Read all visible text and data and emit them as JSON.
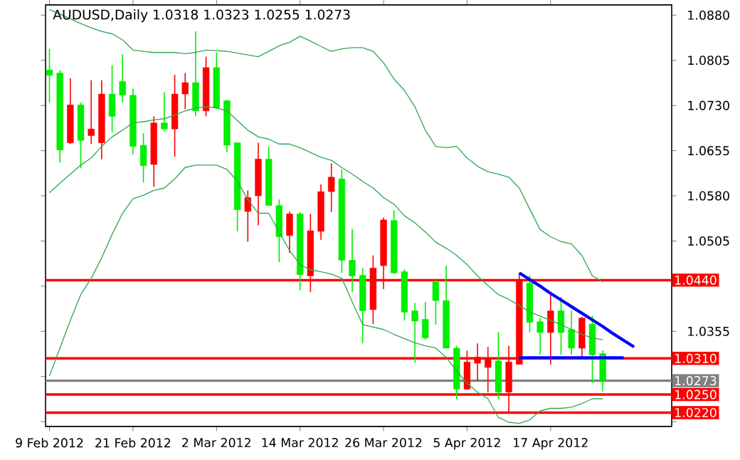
{
  "chart_data": {
    "type": "candlestick",
    "title": "AUDUSD,Daily  1.0318 1.0323 1.0255 1.0273",
    "categories": [
      "9 Feb 2012",
      null,
      null,
      null,
      null,
      null,
      null,
      null,
      "21 Feb 2012",
      null,
      null,
      null,
      null,
      null,
      null,
      null,
      "2 Mar 2012",
      null,
      null,
      null,
      null,
      null,
      null,
      null,
      "14 Mar 2012",
      null,
      null,
      null,
      null,
      null,
      null,
      null,
      "26 Mar 2012",
      null,
      null,
      null,
      null,
      null,
      null,
      null,
      "5 Apr 2012",
      null,
      null,
      null,
      null,
      null,
      null,
      null,
      "17 Apr 2012",
      null,
      null,
      null,
      null,
      null,
      null,
      null,
      null
    ],
    "ohlc": [
      [
        1.0789,
        1.0824,
        1.0735,
        1.078
      ],
      [
        1.0784,
        1.0789,
        1.0635,
        1.0656
      ],
      [
        1.0668,
        1.0775,
        1.0666,
        1.0731
      ],
      [
        1.0731,
        1.0735,
        1.0626,
        1.0672
      ],
      [
        1.068,
        1.0772,
        1.0666,
        1.0691
      ],
      [
        1.0668,
        1.0772,
        1.0641,
        1.0749
      ],
      [
        1.0749,
        1.0797,
        1.0685,
        1.0712
      ],
      [
        1.077,
        1.0815,
        1.0735,
        1.0747
      ],
      [
        1.0747,
        1.0758,
        1.0649,
        1.0662
      ],
      [
        1.0664,
        1.0684,
        1.0602,
        1.063
      ],
      [
        1.0632,
        1.0712,
        1.0595,
        1.0701
      ],
      [
        1.0701,
        1.0752,
        1.0687,
        1.0691
      ],
      [
        1.0691,
        1.0781,
        1.0645,
        1.0749
      ],
      [
        1.0749,
        1.0784,
        1.0724,
        1.0768
      ],
      [
        1.0768,
        1.0853,
        1.0712,
        1.0721
      ],
      [
        1.0721,
        1.0811,
        1.0712,
        1.0793
      ],
      [
        1.0793,
        1.0818,
        1.0724,
        1.0726
      ],
      [
        1.0738,
        1.0739,
        1.0652,
        1.0664
      ],
      [
        1.0668,
        1.0668,
        1.0521,
        1.0557
      ],
      [
        1.0554,
        1.0589,
        1.0504,
        1.0577
      ],
      [
        1.058,
        1.0668,
        1.0531,
        1.0641
      ],
      [
        1.0641,
        1.0662,
        1.0564,
        1.0564
      ],
      [
        1.0564,
        1.0574,
        1.047,
        1.0512
      ],
      [
        1.0514,
        1.0554,
        1.0485,
        1.055
      ],
      [
        1.055,
        1.0553,
        1.0423,
        1.0449
      ],
      [
        1.0447,
        1.055,
        1.042,
        1.0522
      ],
      [
        1.0521,
        1.0599,
        1.0507,
        1.0587
      ],
      [
        1.0587,
        1.0634,
        1.0553,
        1.0611
      ],
      [
        1.0608,
        1.0624,
        1.0452,
        1.0473
      ],
      [
        1.0473,
        1.0525,
        1.042,
        1.0447
      ],
      [
        1.0448,
        1.046,
        1.0335,
        1.0389
      ],
      [
        1.0391,
        1.0481,
        1.0367,
        1.046
      ],
      [
        1.0464,
        1.0544,
        1.0425,
        1.054
      ],
      [
        1.0539,
        1.0556,
        1.045,
        1.0452
      ],
      [
        1.0454,
        1.0458,
        1.0373,
        1.0387
      ],
      [
        1.0389,
        1.0402,
        1.0303,
        1.0372
      ],
      [
        1.0375,
        1.0404,
        1.0341,
        1.0344
      ],
      [
        1.0437,
        1.0443,
        1.0366,
        1.0406
      ],
      [
        1.0406,
        1.0464,
        1.0327,
        1.0327
      ],
      [
        1.0327,
        1.0331,
        1.0242,
        1.0259
      ],
      [
        1.0259,
        1.0323,
        1.0258,
        1.0304
      ],
      [
        1.0302,
        1.0335,
        1.0273,
        1.0312
      ],
      [
        1.0295,
        1.0329,
        1.0254,
        1.031
      ],
      [
        1.0306,
        1.0354,
        1.0242,
        1.0254
      ],
      [
        1.0254,
        1.0331,
        1.0219,
        1.0304
      ],
      [
        1.03,
        1.0452,
        1.03,
        1.044
      ],
      [
        1.0435,
        1.0448,
        1.0353,
        1.037
      ],
      [
        1.0371,
        1.0377,
        1.0316,
        1.0353
      ],
      [
        1.0353,
        1.0416,
        1.03,
        1.0389
      ],
      [
        1.0389,
        1.0412,
        1.0316,
        1.0353
      ],
      [
        1.0358,
        1.0389,
        1.0316,
        1.0327
      ],
      [
        1.0327,
        1.0379,
        1.0308,
        1.0377
      ],
      [
        1.0367,
        1.0381,
        1.0269,
        1.0316
      ],
      [
        1.0318,
        1.0323,
        1.0255,
        1.0273
      ],
      null,
      null,
      null
    ],
    "series": [
      {
        "type": "line",
        "color": "#32a852",
        "values": [
          1.0889,
          1.0882,
          1.0874,
          1.0866,
          1.0859,
          1.0853,
          1.0849,
          1.0839,
          1.0822,
          1.082,
          1.0818,
          1.0818,
          1.0818,
          1.0816,
          1.0818,
          1.0822,
          1.0821,
          1.082,
          1.0817,
          1.0814,
          1.0811,
          1.082,
          1.0829,
          1.0835,
          1.0845,
          1.0837,
          1.0828,
          1.082,
          1.0824,
          1.0826,
          1.0826,
          1.082,
          1.0801,
          1.0774,
          1.0755,
          1.0728,
          1.0689,
          1.0662,
          1.066,
          1.0662,
          1.0643,
          1.0629,
          1.062,
          1.0616,
          1.0611,
          1.0593,
          1.0558,
          1.0524,
          1.0512,
          1.0504,
          1.05,
          1.0481,
          1.0447,
          1.0437,
          null,
          null,
          null
        ]
      },
      {
        "type": "line",
        "color": "#32a852",
        "values": [
          1.0585,
          1.0601,
          1.0616,
          1.0631,
          1.0643,
          1.0662,
          1.0678,
          1.0689,
          1.0701,
          1.0703,
          1.0706,
          1.0708,
          1.0714,
          1.0721,
          1.0726,
          1.0728,
          1.0726,
          1.0721,
          1.0705,
          1.0689,
          1.0678,
          1.0674,
          1.0666,
          1.0666,
          1.066,
          1.0652,
          1.0644,
          1.0639,
          1.0627,
          1.0616,
          1.0604,
          1.0593,
          1.0577,
          1.0566,
          1.0547,
          1.0535,
          1.052,
          1.0503,
          1.0493,
          1.0481,
          1.0466,
          1.0447,
          1.0431,
          1.0416,
          1.0408,
          1.0398,
          1.0387,
          1.038,
          1.0373,
          1.0366,
          1.0358,
          1.035,
          1.0344,
          1.0341,
          null,
          null,
          null
        ]
      },
      {
        "type": "line",
        "color": "#32a852",
        "values": [
          1.0281,
          1.0327,
          1.0373,
          1.0416,
          1.0443,
          1.0477,
          1.0516,
          1.0551,
          1.0575,
          1.0581,
          1.0589,
          1.0593,
          1.0608,
          1.0627,
          1.0631,
          1.0631,
          1.0631,
          1.0624,
          1.0604,
          1.0574,
          1.0551,
          1.0551,
          1.052,
          1.0489,
          1.0466,
          1.0457,
          1.0454,
          1.045,
          1.0443,
          1.0404,
          1.0366,
          1.0362,
          1.0358,
          1.035,
          1.0343,
          1.0336,
          1.0331,
          1.0327,
          1.0312,
          1.0289,
          1.0269,
          1.0254,
          1.0243,
          1.0212,
          1.0204,
          1.0202,
          1.0208,
          1.0223,
          1.0227,
          1.0227,
          1.0229,
          1.0235,
          1.0243,
          1.0243,
          null,
          null,
          null
        ]
      },
      {
        "type": "line",
        "color": "#0000ff",
        "values": [
          null,
          null,
          null,
          null,
          null,
          null,
          null,
          null,
          null,
          null,
          null,
          null,
          null,
          null,
          null,
          null,
          null,
          null,
          null,
          null,
          null,
          null,
          null,
          null,
          null,
          null,
          null,
          null,
          null,
          null,
          null,
          null,
          null,
          null,
          null,
          null,
          null,
          null,
          null,
          null,
          null,
          null,
          null,
          null,
          null,
          1.0452,
          1.0441,
          1.043,
          1.0418,
          1.0407,
          1.0396,
          1.0385,
          1.0374,
          1.0363,
          1.0351,
          1.034,
          1.0329
        ]
      },
      {
        "type": "line",
        "color": "#0000ff",
        "values": [
          null,
          null,
          null,
          null,
          null,
          null,
          null,
          null,
          null,
          null,
          null,
          null,
          null,
          null,
          null,
          null,
          null,
          null,
          null,
          null,
          null,
          null,
          null,
          null,
          null,
          null,
          null,
          null,
          null,
          null,
          null,
          null,
          null,
          null,
          null,
          null,
          null,
          null,
          null,
          null,
          null,
          null,
          null,
          null,
          null,
          1.0311,
          1.0311,
          1.0311,
          1.0311,
          1.0311,
          1.0311,
          1.0311,
          1.0311,
          1.0311,
          1.0311,
          1.0311,
          null
        ]
      }
    ],
    "ylim": [
      1.0197,
      1.0897
    ],
    "yticks": [
      {
        "value": 1.088,
        "label": "1.0880"
      },
      {
        "value": 1.0805,
        "label": "1.0805"
      },
      {
        "value": 1.073,
        "label": "1.0730"
      },
      {
        "value": 1.0655,
        "label": "1.0655"
      },
      {
        "value": 1.058,
        "label": "1.0580"
      },
      {
        "value": 1.0505,
        "label": "1.0505"
      },
      {
        "value": 1.043,
        "label": null
      },
      {
        "value": 1.0355,
        "label": "1.0355"
      },
      {
        "value": 1.028,
        "label": null
      },
      {
        "value": 1.0205,
        "label": null
      }
    ],
    "ref_lines": [
      {
        "axis": "y",
        "value": 1.044,
        "label": "1.0440",
        "color": "#ff0000"
      },
      {
        "axis": "y",
        "value": 1.031,
        "label": "1.0310",
        "color": "#ff0000"
      },
      {
        "axis": "y",
        "value": 1.025,
        "label": "1.0250",
        "color": "#ff0000"
      },
      {
        "axis": "y",
        "value": 1.022,
        "label": "1.0220",
        "color": "#ff0000"
      },
      {
        "axis": "y",
        "value": 1.0273,
        "label": "1.0273",
        "color": "#808080"
      }
    ],
    "marker": "none",
    "grid": false
  }
}
